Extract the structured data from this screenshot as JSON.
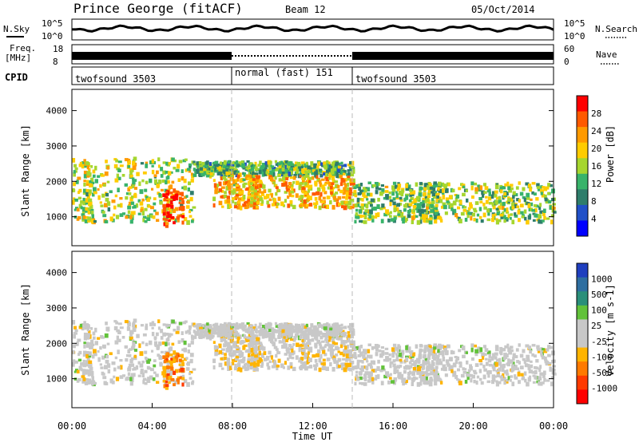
{
  "header": {
    "title": "Prince George (fitACF)",
    "beam": "Beam 12",
    "date": "05/Oct/2014"
  },
  "summary": {
    "nsky_label": "N.Sky",
    "nsearch_label": "N.Search",
    "freq_label_1": "Freq.",
    "freq_label_2": "[MHz]",
    "nave_label": "Nave",
    "cpid_label": "CPID",
    "noise_ticks": [
      "10^5",
      "10^0"
    ],
    "freq_ticks": [
      "18",
      "8"
    ],
    "nave_ticks": [
      "60",
      "0"
    ],
    "noise_level": 0.55,
    "freq_level": 0.42,
    "cpid_segments": [
      {
        "label": "twofsound 3503",
        "start": 0,
        "end": 8
      },
      {
        "label": "normal (fast) 151",
        "start": 8,
        "end": 14
      },
      {
        "label": "twofsound 3503",
        "start": 14,
        "end": 24
      }
    ]
  },
  "power_panel": {
    "ylabel": "Slant Range [km]",
    "yticks": [
      "4000",
      "3000",
      "2000",
      "1000"
    ],
    "cbar_label": "Power [dB]",
    "cbar_ticks": [
      "28",
      "24",
      "20",
      "16",
      "12",
      "8",
      "4"
    ],
    "cbar_colors": [
      "#ff0000",
      "#ff5a00",
      "#ff9a00",
      "#ffcc00",
      "#a6d62e",
      "#38b36a",
      "#2e7d6b",
      "#2050c8",
      "#0000ff"
    ]
  },
  "velocity_panel": {
    "ylabel": "Slant Range [km]",
    "yticks": [
      "4000",
      "3000",
      "2000",
      "1000"
    ],
    "cbar_label": "Velocity [m s-1]",
    "cbar_ticks": [
      "1000",
      "500",
      "100",
      "25",
      "-25",
      "-100",
      "-500",
      "-1000"
    ],
    "cbar_colors": [
      "#1f3fbf",
      "#2e6ea0",
      "#2a8f7a",
      "#62c23a",
      "#c8c8c8",
      "#c8c8c8",
      "#ffb400",
      "#ff7a00",
      "#ff3a00",
      "#ff0000"
    ]
  },
  "xaxis": {
    "label": "Time UT",
    "ticks": [
      "00:00",
      "04:00",
      "08:00",
      "12:00",
      "16:00",
      "20:00",
      "00:00"
    ]
  },
  "chart_data": {
    "type": "heatmap",
    "title": "Prince George (fitACF)",
    "subtitle": "Beam 12",
    "date": "05/Oct/2014",
    "xlabel": "Time UT",
    "ylabel": "Slant Range [km]",
    "x_range_hours": [
      0,
      24
    ],
    "ylim": [
      180,
      4600
    ],
    "power_range_db": [
      0,
      30
    ],
    "velocity_range": [
      -1000,
      1000
    ],
    "cpid_boundaries_hours": [
      8,
      14
    ],
    "echo_regions": [
      {
        "name": "early band",
        "t_start": 0,
        "t_end": 6,
        "r_low": 900,
        "r_high": 2700,
        "power": 16,
        "velocity": 0
      },
      {
        "name": "early hotspot",
        "t_start": 4.5,
        "t_end": 5.5,
        "r_low": 800,
        "r_high": 1800,
        "power": 28,
        "velocity": -500
      },
      {
        "name": "mid upper layer",
        "t_start": 6,
        "t_end": 14,
        "r_low": 2200,
        "r_high": 2600,
        "power": 12,
        "velocity": 0
      },
      {
        "name": "mid lower echoes",
        "t_start": 7,
        "t_end": 14,
        "r_low": 1300,
        "r_high": 2200,
        "power": 20,
        "velocity": -100
      },
      {
        "name": "late band",
        "t_start": 14,
        "t_end": 24,
        "r_low": 900,
        "r_high": 2000,
        "power": 14,
        "velocity": 0
      }
    ]
  }
}
